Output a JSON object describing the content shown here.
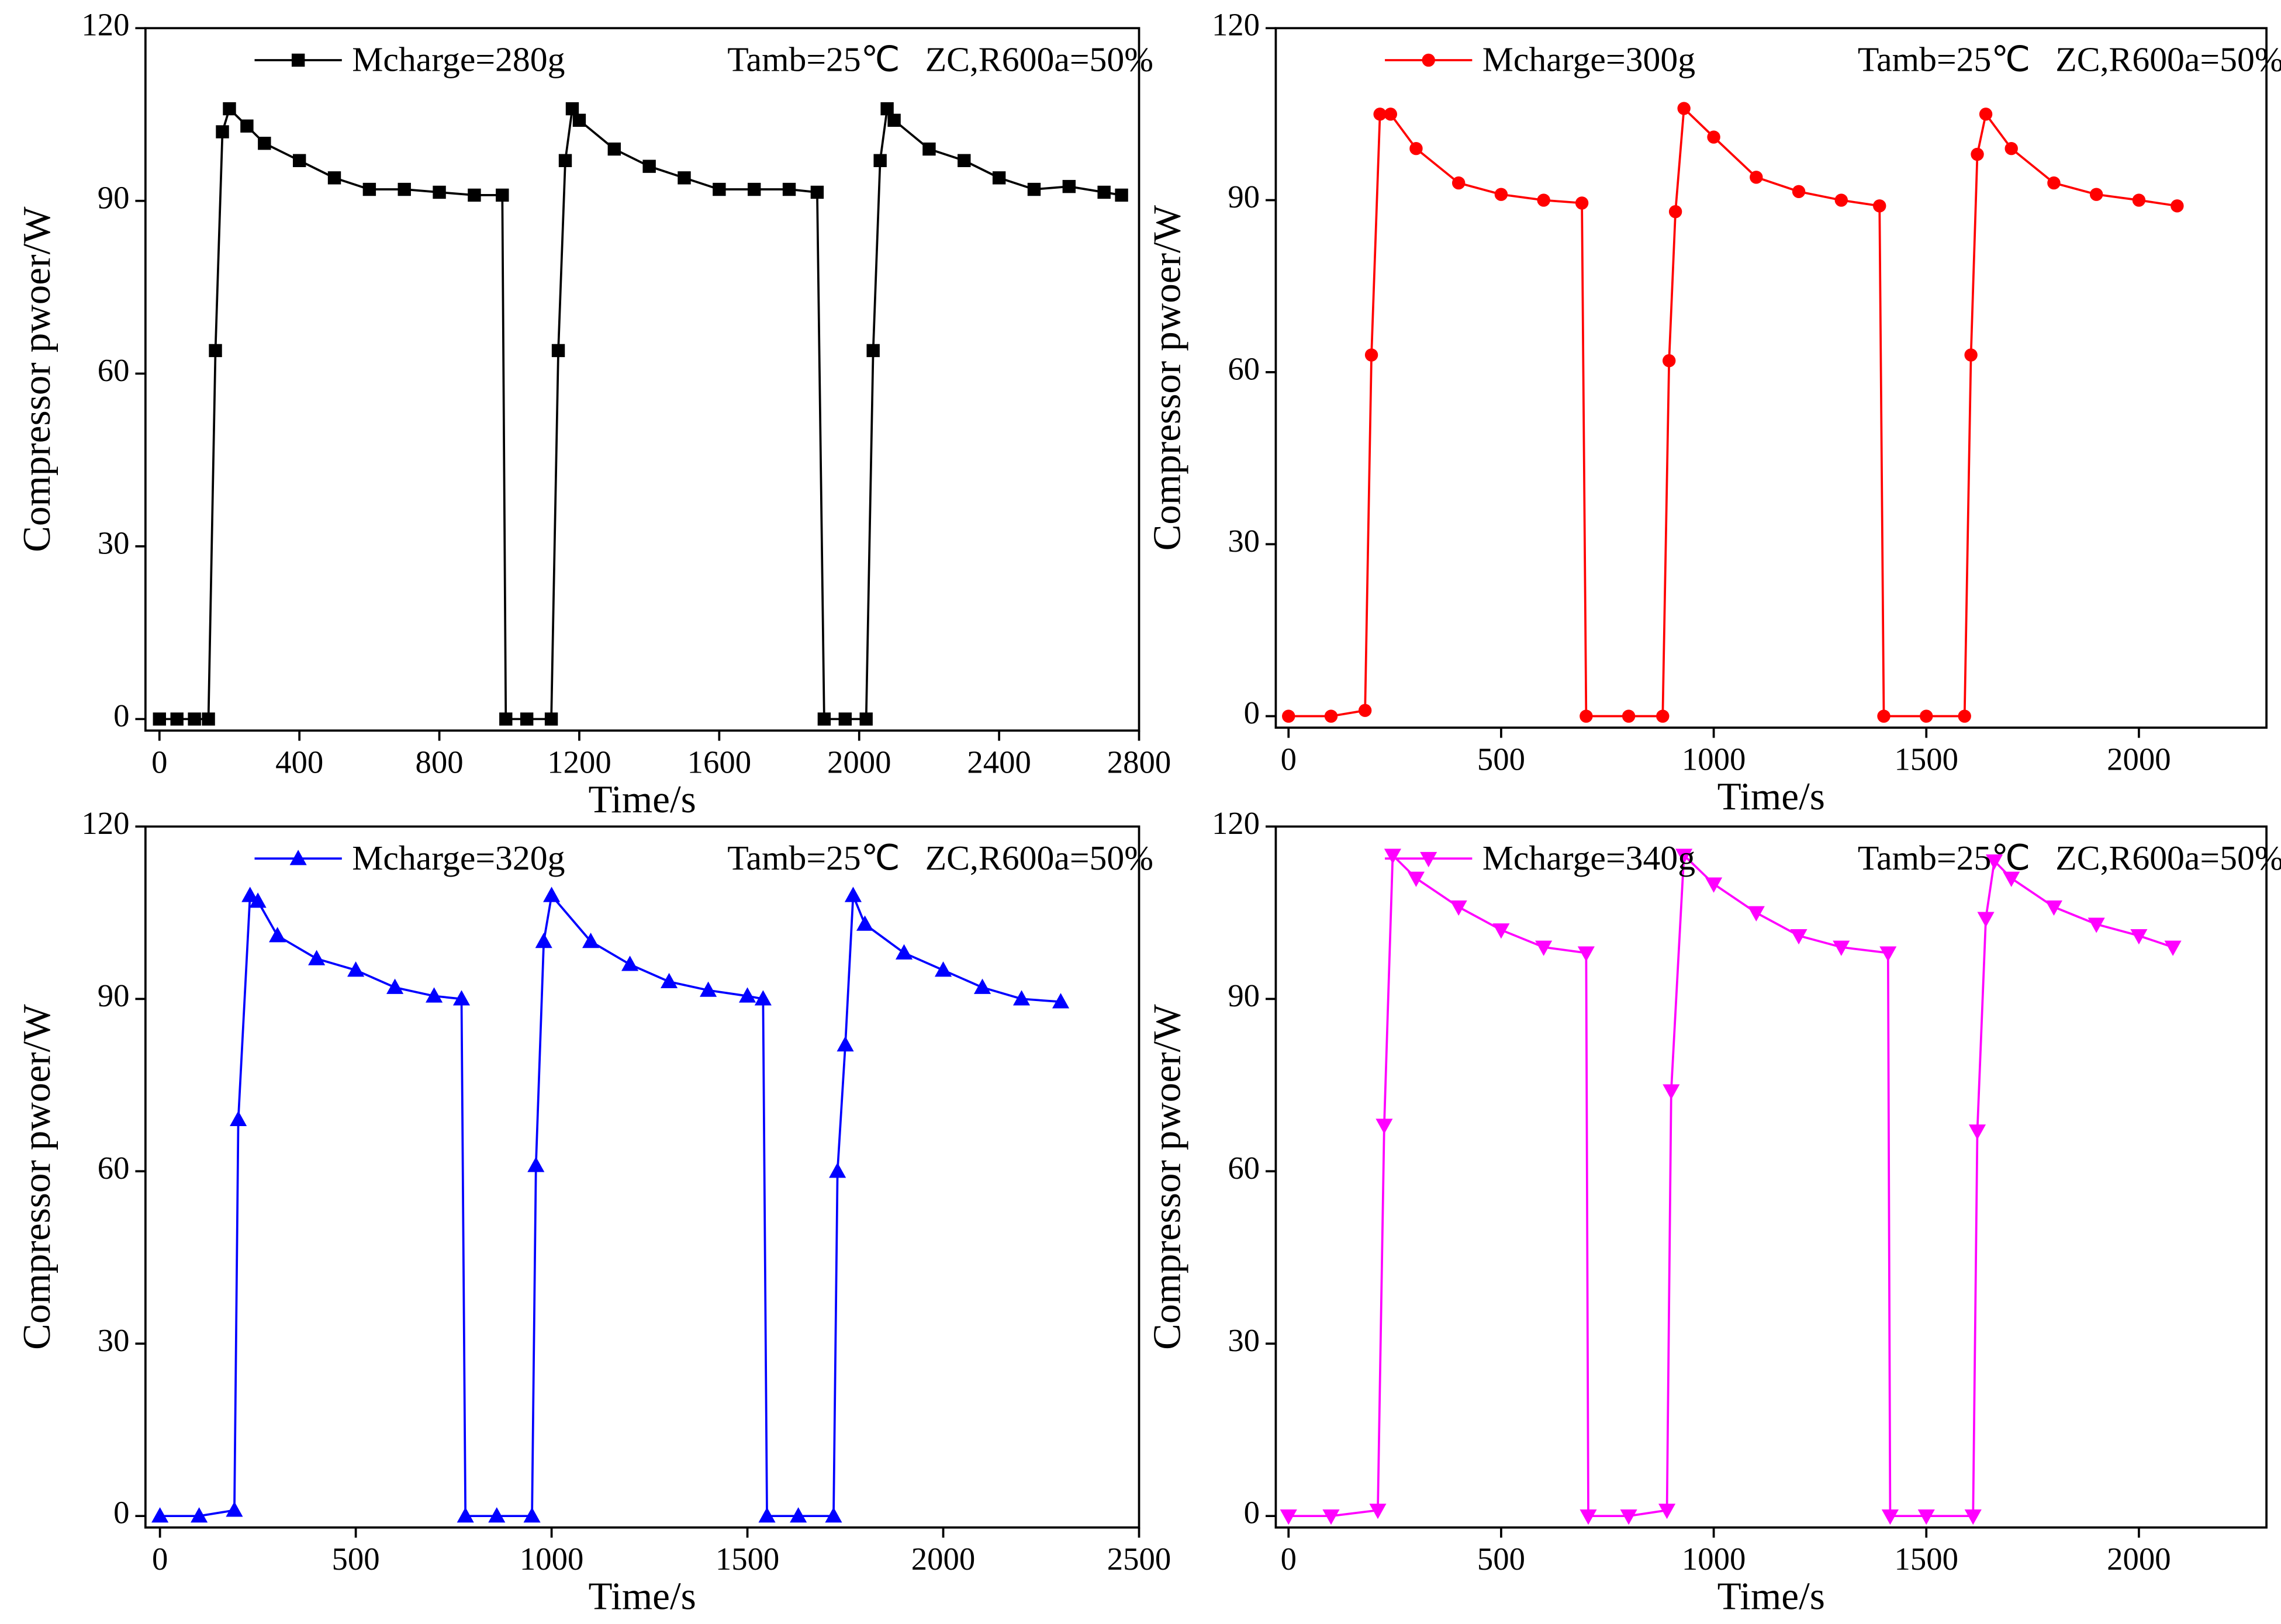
{
  "chart_data": [
    {
      "type": "line",
      "x": [
        0,
        50,
        100,
        140,
        160,
        180,
        200,
        250,
        300,
        400,
        500,
        600,
        700,
        800,
        900,
        980,
        990,
        1050,
        1120,
        1140,
        1160,
        1180,
        1200,
        1300,
        1400,
        1500,
        1600,
        1700,
        1800,
        1880,
        1900,
        1960,
        2020,
        2040,
        2060,
        2080,
        2100,
        2200,
        2300,
        2400,
        2500,
        2600,
        2700,
        2750
      ],
      "series": [
        {
          "name": "Mcharge=280g",
          "color": "#000000",
          "marker": "square",
          "values": [
            0,
            0,
            0,
            0,
            64,
            102,
            106,
            103,
            100,
            97,
            94,
            92,
            92,
            91.5,
            91,
            91,
            0,
            0,
            0,
            64,
            97,
            106,
            104,
            99,
            96,
            94,
            92,
            92,
            92,
            91.5,
            0,
            0,
            0,
            64,
            97,
            106,
            104,
            99,
            97,
            94,
            92,
            92.5,
            91.5,
            91
          ]
        }
      ],
      "annotations": [
        "Tamb=25℃",
        "ZC,R600a=50%"
      ],
      "xlabel": "Time/s",
      "ylabel": "Compressor pwoer/W",
      "xlim": [
        -40,
        2800
      ],
      "ylim": [
        -2,
        120
      ],
      "xticks": [
        0,
        400,
        800,
        1200,
        1600,
        2000,
        2400,
        2800
      ],
      "yticks": [
        0,
        30,
        60,
        90,
        120
      ]
    },
    {
      "type": "line",
      "x": [
        0,
        100,
        180,
        195,
        215,
        240,
        300,
        400,
        500,
        600,
        690,
        700,
        800,
        880,
        895,
        910,
        930,
        1000,
        1100,
        1200,
        1300,
        1390,
        1400,
        1500,
        1590,
        1605,
        1620,
        1640,
        1700,
        1800,
        1900,
        2000,
        2090
      ],
      "series": [
        {
          "name": "Mcharge=300g",
          "color": "#ff0000",
          "marker": "circle",
          "values": [
            0,
            0,
            1,
            63,
            105,
            105,
            99,
            93,
            91,
            90,
            89.5,
            0,
            0,
            0,
            62,
            88,
            106,
            101,
            94,
            91.5,
            90,
            89,
            0,
            0,
            0,
            63,
            98,
            105,
            99,
            93,
            91,
            90,
            89
          ]
        }
      ],
      "annotations": [
        "Tamb=25℃",
        "ZC,R600a=50%"
      ],
      "xlabel": "Time/s",
      "ylabel": "Compressor pwoer/W",
      "xlim": [
        -30,
        2300
      ],
      "ylim": [
        -2,
        120
      ],
      "xticks": [
        0,
        500,
        1000,
        1500,
        2000
      ],
      "yticks": [
        0,
        30,
        60,
        90,
        120
      ]
    },
    {
      "type": "line",
      "x": [
        0,
        100,
        190,
        200,
        230,
        250,
        300,
        400,
        500,
        600,
        700,
        770,
        780,
        860,
        950,
        960,
        980,
        1000,
        1100,
        1200,
        1300,
        1400,
        1500,
        1540,
        1550,
        1630,
        1720,
        1730,
        1750,
        1770,
        1800,
        1900,
        2000,
        2100,
        2200,
        2300
      ],
      "series": [
        {
          "name": "Mcharge=320g",
          "color": "#0000ff",
          "marker": "triangle-up",
          "values": [
            0,
            0,
            1,
            69,
            108,
            107,
            101,
            97,
            95,
            92,
            90.5,
            90,
            0,
            0,
            0,
            61,
            100,
            108,
            100,
            96,
            93,
            91.5,
            90.5,
            90,
            0,
            0,
            0,
            60,
            82,
            108,
            103,
            98,
            95,
            92,
            90,
            89.5
          ]
        }
      ],
      "annotations": [
        "Tamb=25℃",
        "ZC,R600a=50%"
      ],
      "xlabel": "Time/s",
      "ylabel": "Compressor pwoer/W",
      "xlim": [
        -37,
        2500
      ],
      "ylim": [
        -2,
        120
      ],
      "xticks": [
        0,
        500,
        1000,
        1500,
        2000,
        2500
      ],
      "yticks": [
        0,
        30,
        60,
        90,
        120
      ]
    },
    {
      "type": "line",
      "x": [
        0,
        100,
        210,
        225,
        245,
        300,
        400,
        500,
        600,
        700,
        705,
        800,
        890,
        900,
        930,
        1000,
        1100,
        1200,
        1300,
        1410,
        1415,
        1500,
        1610,
        1620,
        1640,
        1660,
        1700,
        1800,
        1900,
        2000,
        2080
      ],
      "series": [
        {
          "name": "Mcharge=340g",
          "color": "#ff00ff",
          "marker": "triangle-down",
          "values": [
            0,
            0,
            1,
            68,
            115,
            111,
            106,
            102,
            99,
            98,
            0,
            0,
            1,
            74,
            115,
            110,
            105,
            101,
            99,
            98,
            0,
            0,
            0,
            67,
            104,
            114,
            111,
            106,
            103,
            101,
            99
          ]
        }
      ],
      "annotations": [
        "Tamb=25℃",
        "ZC,R600a=50%"
      ],
      "xlabel": "Time/s",
      "ylabel": "Compressor pwoer/W",
      "xlim": [
        -30,
        2300
      ],
      "ylim": [
        -2,
        120
      ],
      "xticks": [
        0,
        500,
        1000,
        1500,
        2000
      ],
      "yticks": [
        0,
        30,
        60,
        90,
        120
      ]
    }
  ]
}
